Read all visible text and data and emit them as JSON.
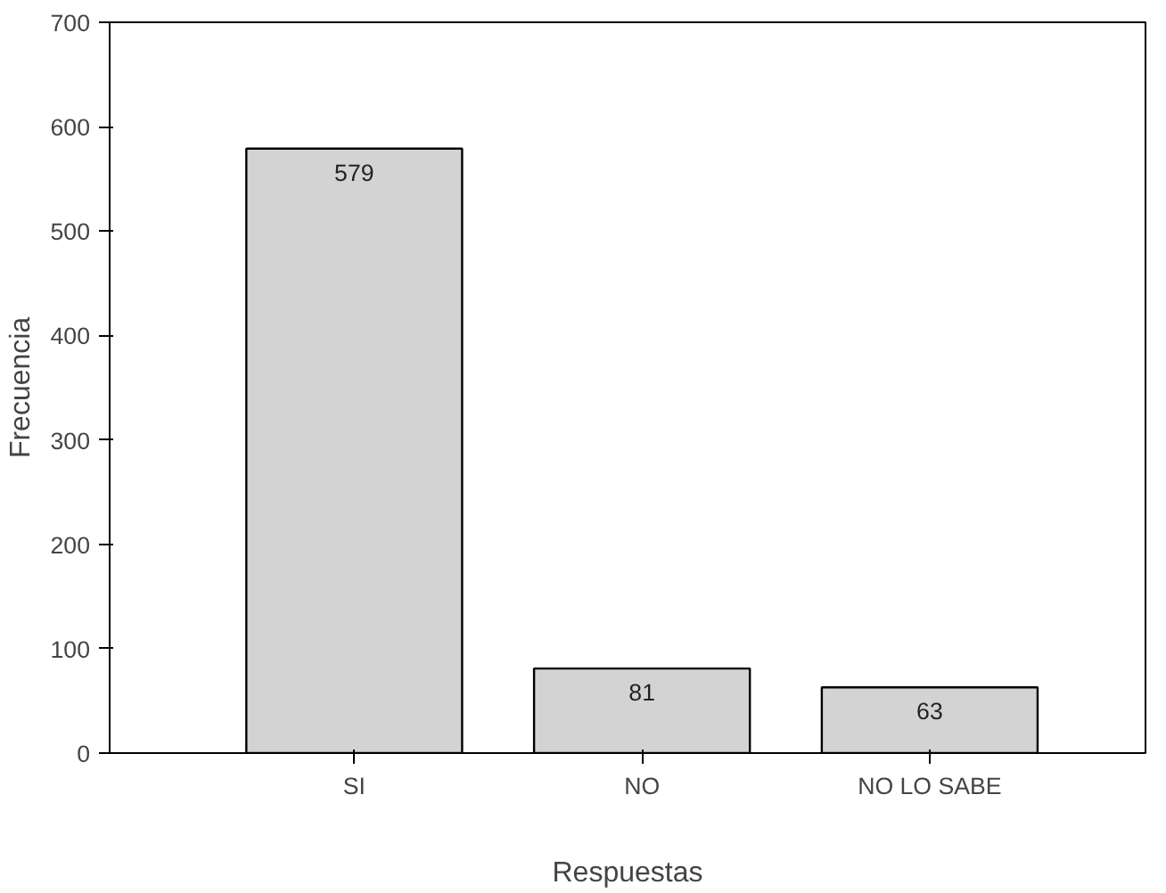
{
  "chart_data": {
    "type": "bar",
    "xlabel": "Respuestas",
    "ylabel": "Frecuencia",
    "categories": [
      "SI",
      "NO",
      "NO LO SABE"
    ],
    "values": [
      579,
      81,
      63
    ],
    "color": "#d3d3d3",
    "ylim": [
      0,
      700
    ],
    "yticks": [
      0,
      100,
      200,
      300,
      400,
      500,
      600,
      700
    ],
    "data_labels": true,
    "grid": false
  }
}
